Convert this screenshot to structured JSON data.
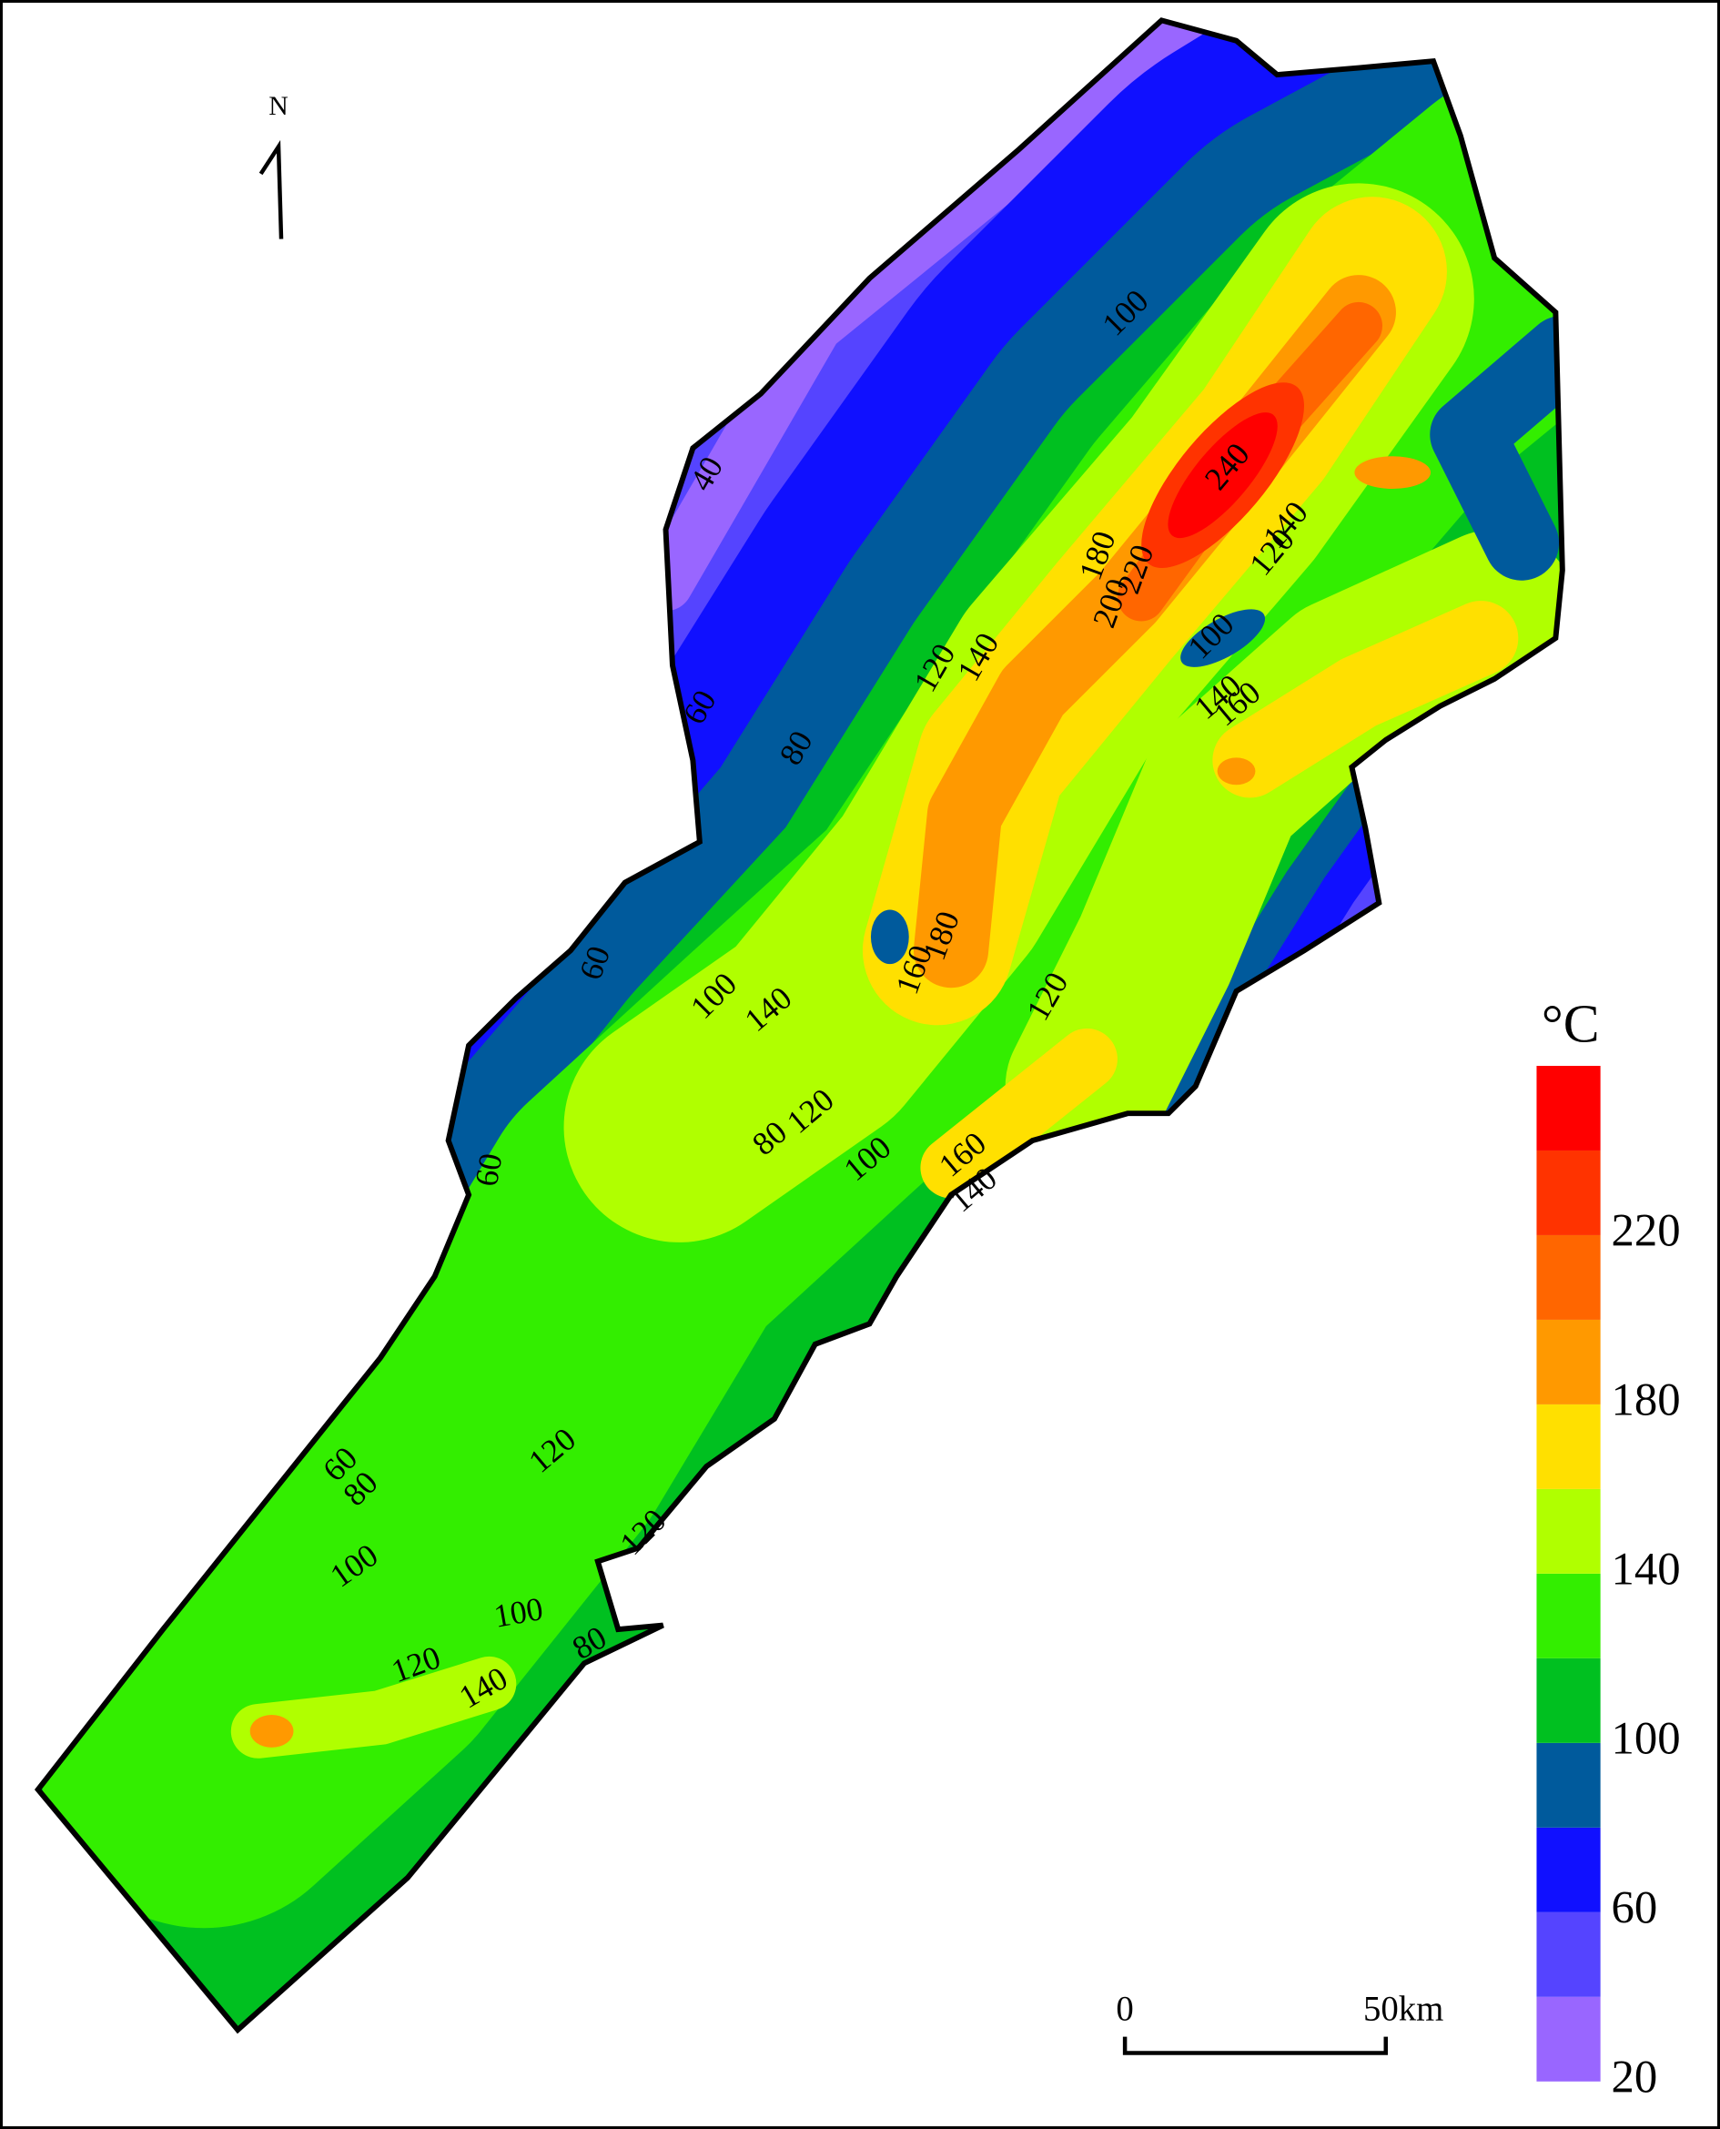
{
  "north": "N",
  "legend": {
    "unit": "°C",
    "colors": [
      "#9966ff",
      "#5544ff",
      "#1010ff",
      "#005a9c",
      "#00c020",
      "#33ee00",
      "#b0ff00",
      "#ffe000",
      "#ff9900",
      "#ff6600",
      "#ff3300",
      "#ff0000"
    ],
    "labels": [
      20,
      60,
      100,
      140,
      180,
      220
    ]
  },
  "scale_bar": {
    "start": "0",
    "end": "50km"
  },
  "contour_labels": [
    100,
    40,
    60,
    80,
    120,
    140,
    180,
    200,
    220,
    240,
    140,
    120,
    100,
    140,
    160,
    160,
    180,
    120,
    100,
    140,
    60,
    60,
    120,
    80,
    100,
    160,
    140,
    60,
    80,
    120,
    120,
    100,
    100,
    80,
    120,
    140
  ]
}
